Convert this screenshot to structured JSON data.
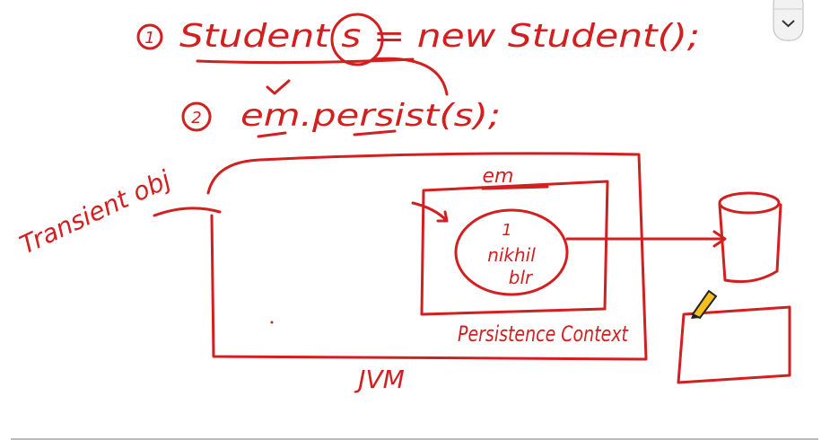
{
  "steps": [
    {
      "number": "1",
      "code": "Student s = new Student();"
    },
    {
      "number": "2",
      "code": "em.persist(s);"
    }
  ],
  "labels": {
    "transient": "Transient obj",
    "em": "em",
    "entity": [
      "1",
      "nikhil",
      "blr"
    ],
    "context": "Persistence Context",
    "jvm": "JVM"
  }
}
